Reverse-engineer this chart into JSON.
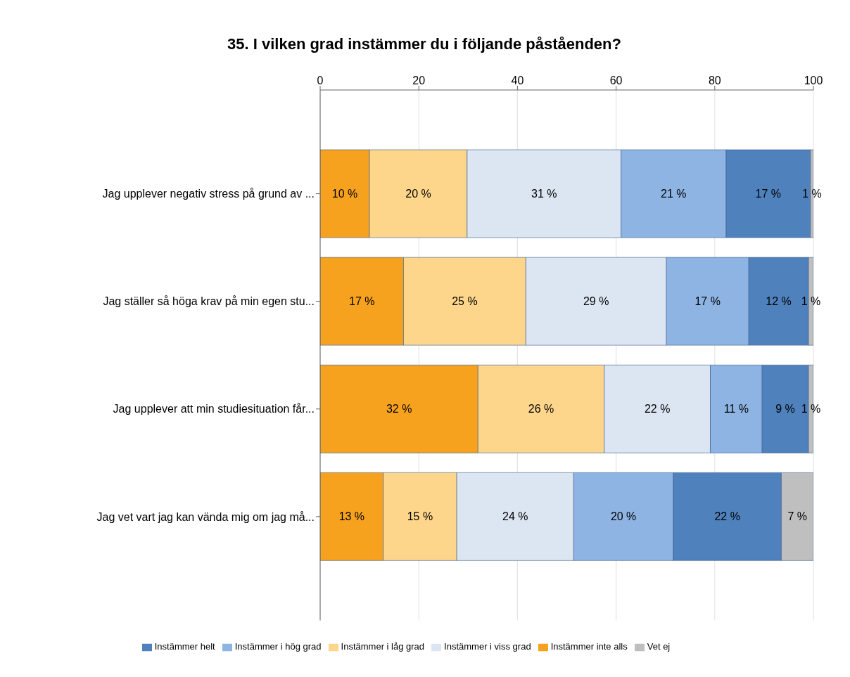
{
  "chart_data": {
    "type": "bar",
    "orientation": "horizontal",
    "stacked": true,
    "title": "35. I vilken grad instämmer du i följande påståenden?",
    "categories": [
      "Jag upplever negativ stress på grund av ...",
      "Jag ställer så höga krav på min egen stu...",
      "Jag upplever att min studiesituation får...",
      "Jag vet vart jag kan vända mig om jag må..."
    ],
    "series": [
      {
        "name": "Instämmer inte alls",
        "color": "#f7a21e",
        "values": [
          10.0,
          16.9,
          32.0,
          12.8
        ],
        "value_labels": [
          "10 %",
          "17 %",
          "32 %",
          "13 %"
        ]
      },
      {
        "name": "Instämmer i låg grad",
        "color": "#fdd68b",
        "values": [
          19.8,
          24.8,
          25.6,
          14.9
        ],
        "value_labels": [
          "20 %",
          "25 %",
          "26 %",
          "15 %"
        ]
      },
      {
        "name": "Instämmer i viss grad",
        "color": "#dce6f2",
        "values": [
          31.2,
          28.5,
          21.5,
          23.7
        ],
        "value_labels": [
          "31 %",
          "29 %",
          "22 %",
          "24 %"
        ]
      },
      {
        "name": "Instämmer i hög grad",
        "color": "#8eb4e3",
        "values": [
          21.3,
          16.7,
          10.5,
          20.2
        ],
        "value_labels": [
          "21 %",
          "17 %",
          "11 %",
          "20 %"
        ]
      },
      {
        "name": "Instämmer helt",
        "color": "#4f81bd",
        "values": [
          17.1,
          12.1,
          9.4,
          21.9
        ],
        "value_labels": [
          "17 %",
          "12 %",
          "9 %",
          "22 %"
        ]
      },
      {
        "name": "Vet ej",
        "color": "#bfbfbf",
        "values": [
          0.6,
          1.0,
          1.0,
          6.5
        ],
        "value_labels": [
          "1 %",
          "1 %",
          "1 %",
          "7 %"
        ]
      }
    ],
    "xlim": [
      0,
      100
    ],
    "xticks": [
      0,
      20,
      40,
      60,
      80,
      100
    ],
    "grid": "x",
    "legend": "bottom"
  }
}
